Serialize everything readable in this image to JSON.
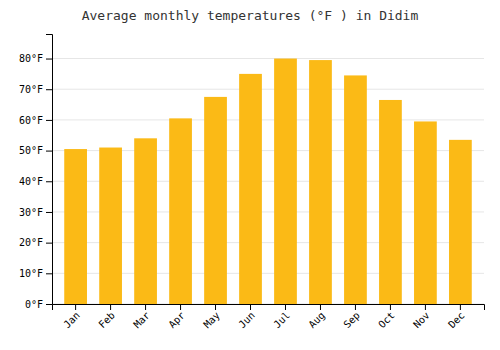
{
  "chart_data": {
    "type": "bar",
    "title": "Average monthly temperatures (°F ) in Didim",
    "categories": [
      "Jan",
      "Feb",
      "Mar",
      "Apr",
      "May",
      "Jun",
      "Jul",
      "Aug",
      "Sep",
      "Oct",
      "Nov",
      "Dec"
    ],
    "values": [
      50.5,
      51.0,
      54.0,
      60.5,
      67.5,
      75.0,
      80.0,
      79.5,
      74.5,
      66.5,
      59.5,
      53.5
    ],
    "color": "#FBBA16",
    "ylim": [
      0,
      88
    ],
    "yticks": [
      {
        "value": 0,
        "label": "0°F"
      },
      {
        "value": 10,
        "label": "10°F"
      },
      {
        "value": 20,
        "label": "20°F"
      },
      {
        "value": 30,
        "label": "30°F"
      },
      {
        "value": 40,
        "label": "40°F"
      },
      {
        "value": 50,
        "label": "50°F"
      },
      {
        "value": 60,
        "label": "60°F"
      },
      {
        "value": 70,
        "label": "70°F"
      },
      {
        "value": 80,
        "label": "80°F"
      }
    ],
    "grid": true
  }
}
